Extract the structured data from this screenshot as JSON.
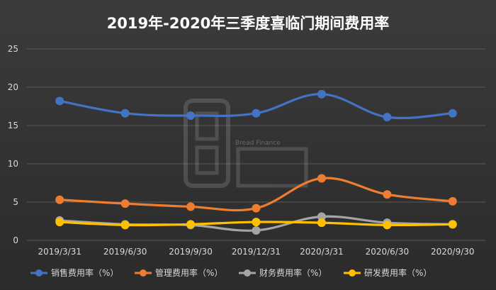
{
  "chart_data": {
    "type": "line",
    "title": "2019年-2020年三季度喜临门期间费用率",
    "xlabel": "",
    "ylabel": "",
    "categories": [
      "2019/3/31",
      "2019/6/30",
      "2019/9/30",
      "2019/12/31",
      "2020/3/31",
      "2020/6/30",
      "2020/9/30"
    ],
    "ylim": [
      0,
      25
    ],
    "yticks": [
      0,
      5,
      10,
      15,
      20,
      25
    ],
    "grid": true,
    "legend_position": "bottom",
    "smooth": true,
    "series": [
      {
        "name": "销售费用率（%）",
        "color": "#4472c4",
        "values": [
          18.2,
          16.6,
          16.3,
          16.6,
          19.1,
          16.1,
          16.6
        ]
      },
      {
        "name": "管理费用率（%）",
        "color": "#ed7d31",
        "values": [
          5.3,
          4.8,
          4.4,
          4.2,
          8.1,
          6.0,
          5.1
        ]
      },
      {
        "name": "财务费用率（%）",
        "color": "#a5a5a5",
        "values": [
          2.6,
          2.1,
          2.0,
          1.3,
          3.1,
          2.3,
          2.1
        ]
      },
      {
        "name": "研发费用率（%）",
        "color": "#ffc000",
        "values": [
          2.4,
          2.0,
          2.1,
          2.4,
          2.3,
          2.0,
          2.1
        ]
      }
    ]
  },
  "watermark": {
    "text": "Bread Finance",
    "logo_text": "面包财经"
  }
}
